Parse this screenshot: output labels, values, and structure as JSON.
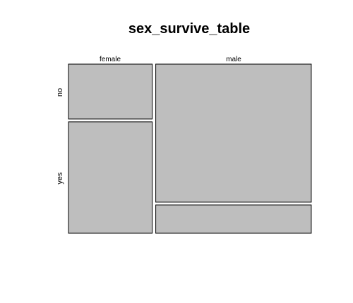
{
  "chart_data": {
    "type": "mosaic",
    "title": "sex_survive_table",
    "x_variable_levels": [
      "female",
      "male"
    ],
    "y_variable_levels": [
      "no",
      "yes"
    ],
    "cells": [
      {
        "x": "female",
        "y": "no",
        "proportion_of_column": 0.33
      },
      {
        "x": "female",
        "y": "yes",
        "proportion_of_column": 0.67
      },
      {
        "x": "male",
        "y": "no",
        "proportion_of_column": 0.83
      },
      {
        "x": "male",
        "y": "yes",
        "proportion_of_column": 0.17
      }
    ],
    "column_proportions": {
      "female": 0.35,
      "male": 0.65
    },
    "tile_color": "#bebebe",
    "grid": false,
    "legend": "none"
  }
}
